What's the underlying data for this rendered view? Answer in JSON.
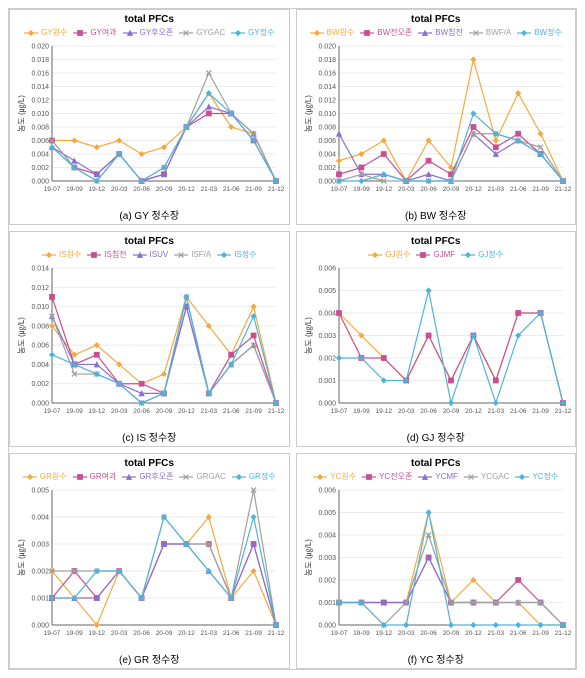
{
  "x_labels": [
    "19-07",
    "19-09",
    "19-12",
    "20-03",
    "20-06",
    "20-09",
    "20-12",
    "21-03",
    "21-06",
    "21-09",
    "21-12"
  ],
  "ylabel": "농도 (㎍/L)",
  "global": {
    "background_color": "#ffffff",
    "grid_color": "#e5e5e5",
    "axis_color": "#666666",
    "tick_fontsize": 7,
    "label_fontsize": 8,
    "title_fontsize": 10,
    "line_width": 1.2,
    "marker_size": 2.5
  },
  "panels": [
    {
      "id": "a",
      "caption": "(a) GY 정수장",
      "title": "total PFCs",
      "ylim": [
        0,
        0.02
      ],
      "ytick_step": 0.002,
      "series": [
        {
          "name": "GY원수",
          "color": "#f4a940",
          "marker": "diamond",
          "values": [
            0.006,
            0.006,
            0.005,
            0.006,
            0.004,
            0.005,
            0.008,
            0.013,
            0.008,
            0.007,
            0.0
          ]
        },
        {
          "name": "GY여과",
          "color": "#c94f8f",
          "marker": "square",
          "values": [
            0.006,
            0.002,
            0.001,
            0.004,
            0.0,
            0.001,
            0.008,
            0.01,
            0.01,
            0.006,
            0.0
          ]
        },
        {
          "name": "GY후오존",
          "color": "#8a6fd0",
          "marker": "triangle",
          "values": [
            0.005,
            0.003,
            0.001,
            0.004,
            0.0,
            0.001,
            0.008,
            0.011,
            0.01,
            0.007,
            0.0
          ]
        },
        {
          "name": "GYGAC",
          "color": "#a0a0a0",
          "marker": "x",
          "values": [
            0.006,
            0.002,
            0.0,
            0.004,
            0.0,
            0.002,
            0.008,
            0.016,
            0.01,
            0.007,
            0.0
          ]
        },
        {
          "name": "GY정수",
          "color": "#4fb3d9",
          "marker": "diamond",
          "values": [
            0.005,
            0.002,
            0.0,
            0.004,
            0.0,
            0.002,
            0.008,
            0.013,
            0.01,
            0.006,
            0.0
          ]
        }
      ]
    },
    {
      "id": "b",
      "caption": "(b) BW 정수장",
      "title": "total PFCs",
      "ylim": [
        0,
        0.02
      ],
      "ytick_step": 0.002,
      "series": [
        {
          "name": "BW원수",
          "color": "#f4a940",
          "marker": "diamond",
          "values": [
            0.003,
            0.004,
            0.006,
            0.0,
            0.006,
            0.002,
            0.018,
            0.006,
            0.013,
            0.007,
            0.0
          ]
        },
        {
          "name": "BW전오존",
          "color": "#c94f8f",
          "marker": "square",
          "values": [
            0.001,
            0.002,
            0.004,
            0.0,
            0.003,
            0.001,
            0.008,
            0.005,
            0.007,
            0.004,
            0.0
          ]
        },
        {
          "name": "BW침전",
          "color": "#8a6fd0",
          "marker": "triangle",
          "values": [
            0.007,
            0.001,
            0.001,
            0.0,
            0.001,
            0.0,
            0.007,
            0.004,
            0.006,
            0.004,
            0.0
          ]
        },
        {
          "name": "BWF/A",
          "color": "#a0a0a0",
          "marker": "x",
          "values": [
            0.0,
            0.001,
            0.0,
            0.0,
            0.0,
            0.0,
            0.007,
            0.007,
            0.006,
            0.005,
            0.0
          ]
        },
        {
          "name": "BW정수",
          "color": "#4fb3d9",
          "marker": "diamond",
          "values": [
            0.0,
            0.0,
            0.001,
            0.0,
            0.0,
            0.0,
            0.01,
            0.007,
            0.006,
            0.004,
            0.0
          ]
        }
      ]
    },
    {
      "id": "c",
      "caption": "(c) IS 정수장",
      "title": "total PFCs",
      "ylim": [
        0,
        0.014
      ],
      "ytick_step": 0.002,
      "series": [
        {
          "name": "IS원수",
          "color": "#f4a940",
          "marker": "diamond",
          "values": [
            0.008,
            0.005,
            0.006,
            0.004,
            0.002,
            0.003,
            0.011,
            0.008,
            0.005,
            0.01,
            0.0
          ]
        },
        {
          "name": "IS침전",
          "color": "#c94f8f",
          "marker": "square",
          "values": [
            0.011,
            0.004,
            0.005,
            0.002,
            0.002,
            0.001,
            0.01,
            0.001,
            0.005,
            0.007,
            0.0
          ]
        },
        {
          "name": "ISUV",
          "color": "#8a6fd0",
          "marker": "triangle",
          "values": [
            0.009,
            0.004,
            0.004,
            0.002,
            0.001,
            0.001,
            0.01,
            0.001,
            0.004,
            0.006,
            0.0
          ]
        },
        {
          "name": "ISF/A",
          "color": "#a0a0a0",
          "marker": "x",
          "values": [
            0.009,
            0.003,
            0.003,
            0.002,
            0.0,
            0.001,
            0.011,
            0.001,
            0.004,
            0.006,
            0.0
          ]
        },
        {
          "name": "IS정수",
          "color": "#4fb3d9",
          "marker": "diamond",
          "values": [
            0.005,
            0.004,
            0.003,
            0.002,
            0.0,
            0.001,
            0.011,
            0.001,
            0.004,
            0.009,
            0.0
          ]
        }
      ]
    },
    {
      "id": "d",
      "caption": "(d) GJ 정수장",
      "title": "total PFCs",
      "ylim": [
        0,
        0.006
      ],
      "ytick_step": 0.001,
      "series": [
        {
          "name": "GJ원수",
          "color": "#f4a940",
          "marker": "diamond",
          "values": [
            0.004,
            0.003,
            0.002,
            0.001,
            0.003,
            0.001,
            0.003,
            0.001,
            0.004,
            0.004,
            0.0
          ]
        },
        {
          "name": "GJMF",
          "color": "#c94f8f",
          "marker": "square",
          "values": [
            0.004,
            0.002,
            0.002,
            0.001,
            0.003,
            0.001,
            0.003,
            0.001,
            0.004,
            0.004,
            0.0
          ]
        },
        {
          "name": "GJ정수",
          "color": "#4fb3d9",
          "marker": "diamond",
          "values": [
            0.002,
            0.002,
            0.001,
            0.001,
            0.005,
            0.0,
            0.003,
            0.0,
            0.003,
            0.004,
            0.0
          ]
        }
      ]
    },
    {
      "id": "e",
      "caption": "(e) GR 정수장",
      "title": "total PFCs",
      "ylim": [
        0,
        0.005
      ],
      "ytick_step": 0.001,
      "series": [
        {
          "name": "GR원수",
          "color": "#f4a940",
          "marker": "diamond",
          "values": [
            0.002,
            0.001,
            0.0,
            0.002,
            0.001,
            0.003,
            0.003,
            0.004,
            0.001,
            0.002,
            0.0
          ]
        },
        {
          "name": "GR여과",
          "color": "#c94f8f",
          "marker": "square",
          "values": [
            0.001,
            0.002,
            0.001,
            0.002,
            0.001,
            0.003,
            0.003,
            0.003,
            0.001,
            0.003,
            0.0
          ]
        },
        {
          "name": "GR후오존",
          "color": "#8a6fd0",
          "marker": "triangle",
          "values": [
            0.001,
            0.001,
            0.001,
            0.002,
            0.001,
            0.003,
            0.003,
            0.002,
            0.001,
            0.003,
            0.0
          ]
        },
        {
          "name": "GRGAC",
          "color": "#a0a0a0",
          "marker": "x",
          "values": [
            0.002,
            0.002,
            0.002,
            0.002,
            0.001,
            0.004,
            0.003,
            0.003,
            0.001,
            0.005,
            0.0
          ]
        },
        {
          "name": "GR정수",
          "color": "#4fb3d9",
          "marker": "diamond",
          "values": [
            0.001,
            0.001,
            0.002,
            0.002,
            0.001,
            0.004,
            0.003,
            0.002,
            0.001,
            0.004,
            0.0
          ]
        }
      ]
    },
    {
      "id": "f",
      "caption": "(f) YC 정수장",
      "title": "total PFCs",
      "ylim": [
        0,
        0.006
      ],
      "ytick_step": 0.001,
      "series": [
        {
          "name": "YC원수",
          "color": "#f4a940",
          "marker": "diamond",
          "values": [
            0.001,
            0.001,
            0.001,
            0.001,
            0.005,
            0.001,
            0.002,
            0.001,
            0.001,
            0.0,
            0.0
          ]
        },
        {
          "name": "YC전오존",
          "color": "#c94f8f",
          "marker": "square",
          "values": [
            0.001,
            0.001,
            0.001,
            0.001,
            0.003,
            0.001,
            0.001,
            0.001,
            0.002,
            0.001,
            0.0
          ]
        },
        {
          "name": "YCMF",
          "color": "#8a6fd0",
          "marker": "triangle",
          "values": [
            0.001,
            0.001,
            0.001,
            0.001,
            0.003,
            0.001,
            0.001,
            0.001,
            0.001,
            0.001,
            0.0
          ]
        },
        {
          "name": "YCGAC",
          "color": "#a0a0a0",
          "marker": "x",
          "values": [
            0.001,
            0.001,
            0.0,
            0.001,
            0.004,
            0.001,
            0.001,
            0.001,
            0.001,
            0.001,
            0.0
          ]
        },
        {
          "name": "YC정수",
          "color": "#4fb3d9",
          "marker": "diamond",
          "values": [
            0.001,
            0.001,
            0.0,
            0.0,
            0.005,
            0.0,
            0.0,
            0.0,
            0.0,
            0.0,
            0.0
          ]
        }
      ]
    }
  ]
}
